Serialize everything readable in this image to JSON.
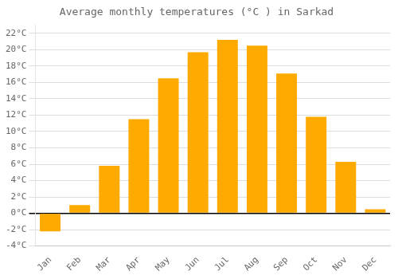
{
  "chart_data": {
    "type": "bar",
    "title": "Average monthly temperatures (°C ) in Sarkad",
    "categories": [
      "Jan",
      "Feb",
      "Mar",
      "Apr",
      "May",
      "Jun",
      "Jul",
      "Aug",
      "Sep",
      "Oct",
      "Nov",
      "Dec"
    ],
    "values": [
      -2.2,
      1.0,
      5.8,
      11.5,
      16.5,
      19.7,
      21.2,
      20.5,
      17.1,
      11.8,
      6.3,
      0.5
    ],
    "color": "#FFAA00",
    "ylim": [
      -4,
      23
    ],
    "yticks": [
      {
        "value": -4,
        "label": "-4°C"
      },
      {
        "value": -2,
        "label": "-2°C"
      },
      {
        "value": 0,
        "label": "0°C"
      },
      {
        "value": 2,
        "label": "2°C"
      },
      {
        "value": 4,
        "label": "4°C"
      },
      {
        "value": 6,
        "label": "6°C"
      },
      {
        "value": 8,
        "label": "8°C"
      },
      {
        "value": 10,
        "label": "10°C"
      },
      {
        "value": 12,
        "label": "12°C"
      },
      {
        "value": 14,
        "label": "14°C"
      },
      {
        "value": 16,
        "label": "16°C"
      },
      {
        "value": 18,
        "label": "18°C"
      },
      {
        "value": 20,
        "label": "20°C"
      },
      {
        "value": 22,
        "label": "22°C"
      }
    ],
    "grid": true
  }
}
